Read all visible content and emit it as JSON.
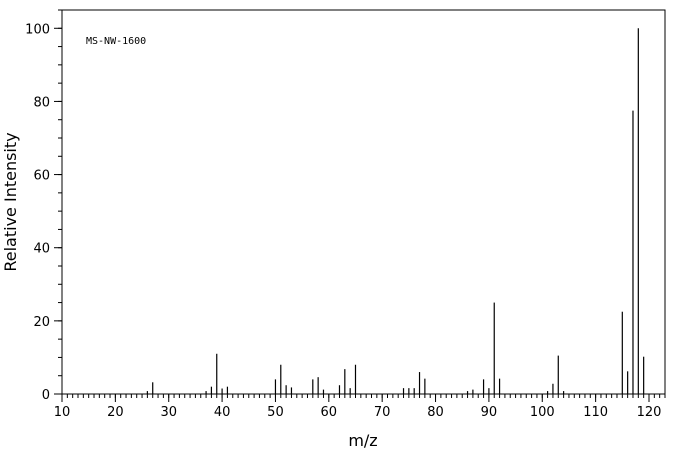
{
  "chart_data": {
    "type": "bar",
    "title": "",
    "annotation": "MS-NW-1600",
    "xlabel": "m/z",
    "ylabel": "Relative Intensity",
    "xlim": [
      10,
      123
    ],
    "ylim": [
      0,
      105
    ],
    "x_ticks": [
      10,
      20,
      30,
      40,
      50,
      60,
      70,
      80,
      90,
      100,
      110,
      120
    ],
    "y_ticks": [
      0,
      20,
      40,
      60,
      80,
      100
    ],
    "grid": false,
    "series": [
      {
        "x": [
          26,
          27,
          37,
          38,
          39,
          40,
          41,
          50,
          51,
          52,
          53,
          57,
          58,
          59,
          62,
          63,
          64,
          65,
          74,
          75,
          76,
          77,
          78,
          86,
          87,
          89,
          90,
          91,
          92,
          101,
          102,
          103,
          104,
          115,
          116,
          117,
          118,
          119
        ],
        "values": [
          0.8,
          3.2,
          0.8,
          2.0,
          11.0,
          1.5,
          2.0,
          4.0,
          8.0,
          2.4,
          1.8,
          4.0,
          4.6,
          1.2,
          2.4,
          6.8,
          1.6,
          8.0,
          1.6,
          1.6,
          1.6,
          6.0,
          4.2,
          0.8,
          1.2,
          4.0,
          1.6,
          25.0,
          4.2,
          0.8,
          2.8,
          10.5,
          0.8,
          22.5,
          6.2,
          77.5,
          100.0,
          10.2
        ]
      }
    ]
  }
}
